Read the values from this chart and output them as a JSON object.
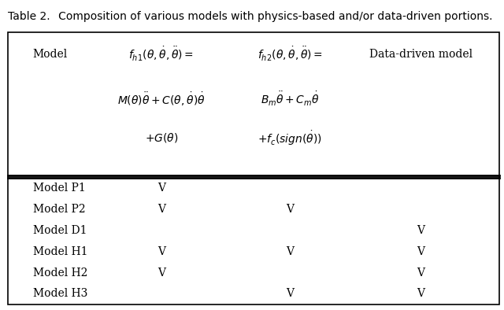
{
  "title_part1": "Table 2.",
  "title_part2": "   Composition of various models with physics-based and/or data-driven portions.",
  "title_fontsize": 10,
  "header_col1": "Model",
  "header_col2": "$f_{h1}(\\theta,\\dot{\\theta},\\ddot{\\theta}) =$",
  "header_col3": "$f_{h2}(\\theta,\\dot{\\theta},\\ddot{\\theta}) =$",
  "header_col4": "Data-driven model",
  "header2_col2": "$M(\\theta)\\ddot{\\theta}+C(\\theta,\\dot{\\theta})\\dot{\\theta}$",
  "header2_col3": "$B_m\\ddot{\\theta}+C_m\\dot{\\theta}$",
  "header3_col2": "$+G(\\theta)$",
  "header3_col3": "$+f_c(sign(\\dot{\\theta}))$",
  "data_rows": [
    {
      "model": "Model P1",
      "fh1": "V",
      "fh2": "",
      "dd": ""
    },
    {
      "model": "Model P2",
      "fh1": "V",
      "fh2": "V",
      "dd": ""
    },
    {
      "model": "Model D1",
      "fh1": "",
      "fh2": "",
      "dd": "V"
    },
    {
      "model": "Model H1",
      "fh1": "V",
      "fh2": "V",
      "dd": "V"
    },
    {
      "model": "Model H2",
      "fh1": "V",
      "fh2": "",
      "dd": "V"
    },
    {
      "model": "Model H3",
      "fh1": "",
      "fh2": "V",
      "dd": "V"
    }
  ],
  "bg_color": "#ffffff",
  "border_color": "#000000",
  "text_color": "#000000",
  "text_fontsize": 10,
  "math_fontsize": 10
}
